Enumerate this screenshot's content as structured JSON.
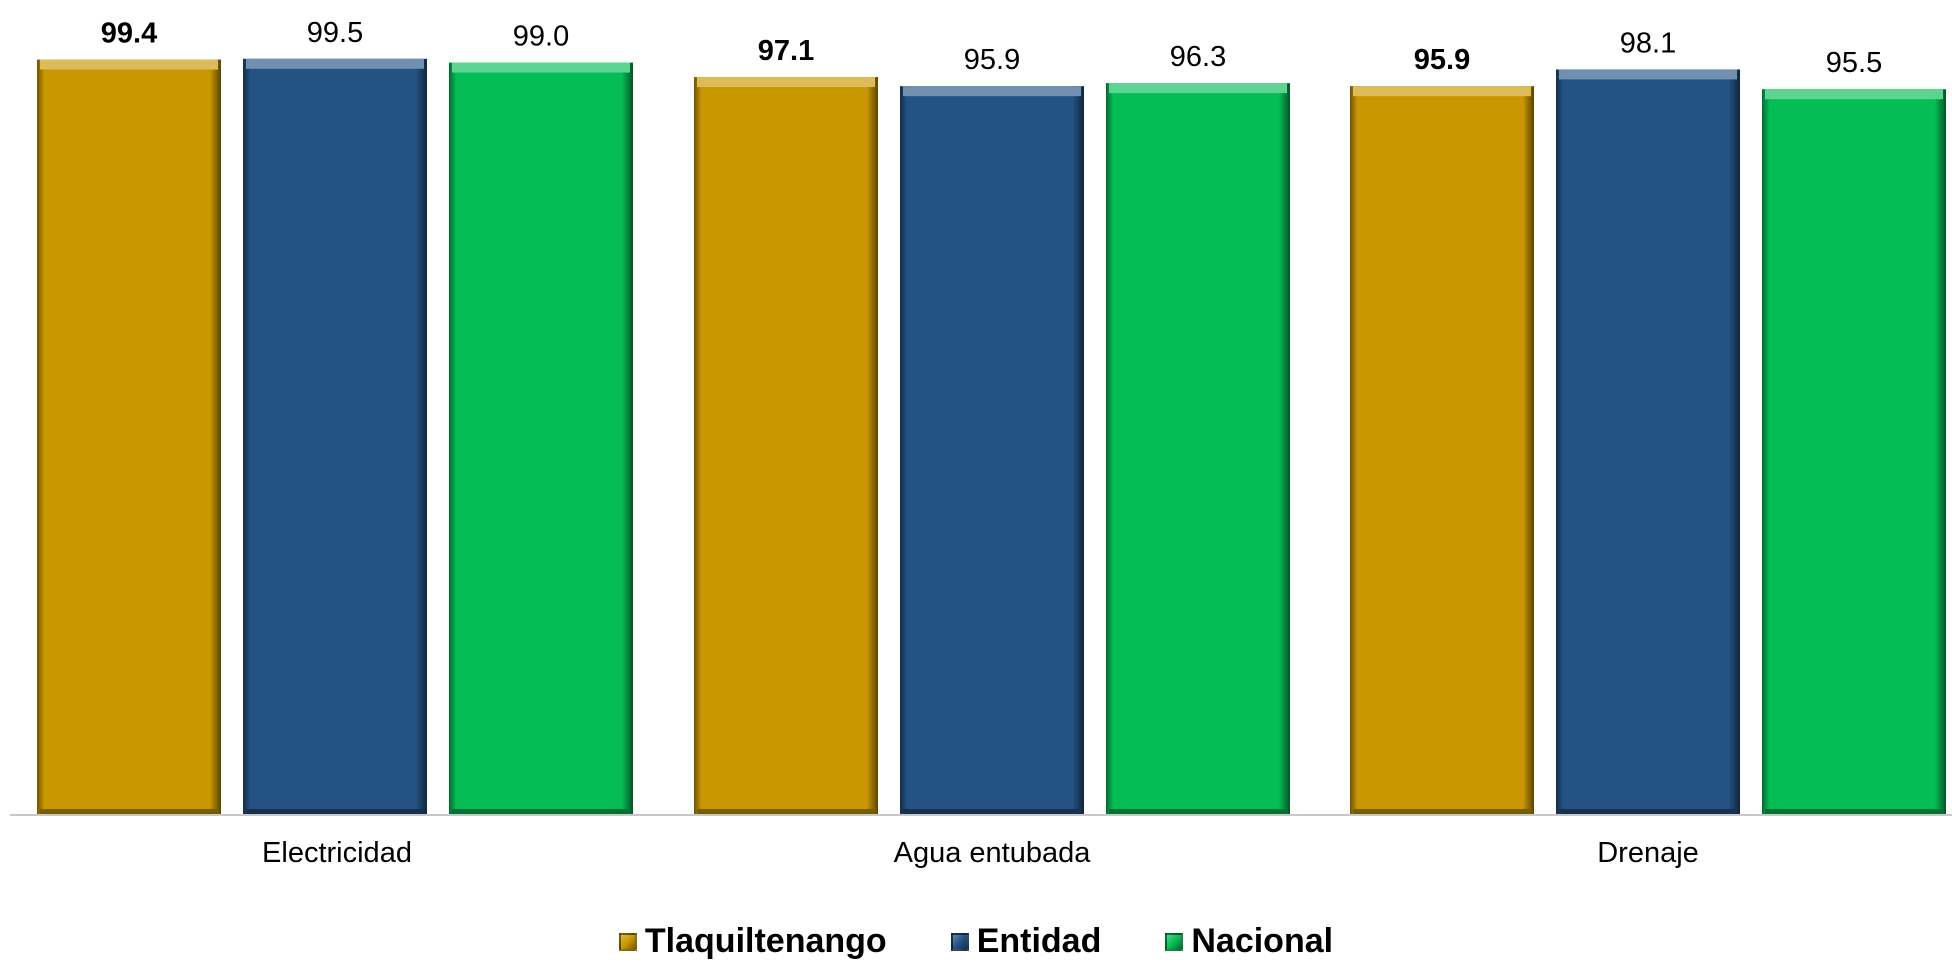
{
  "chart_data": {
    "type": "bar",
    "categories": [
      "Electricidad",
      "Agua entubada",
      "Drenaje"
    ],
    "series": [
      {
        "name": "Tlaquiltenango",
        "values": [
          99.4,
          97.1,
          95.9
        ],
        "color": "#C99700",
        "label_bold": true
      },
      {
        "name": "Entidad",
        "values": [
          99.5,
          95.9,
          98.1
        ],
        "color": "#245283",
        "label_bold": false
      },
      {
        "name": "Nacional",
        "values": [
          99.0,
          96.3,
          95.5
        ],
        "color": "#05BD55",
        "label_bold": false
      }
    ],
    "value_labels": [
      [
        "99.4",
        "97.1",
        "95.9"
      ],
      [
        "99.5",
        "95.9",
        "98.1"
      ],
      [
        "99.0",
        "96.3",
        "95.5"
      ]
    ],
    "ylim": [
      0,
      100
    ],
    "grid": false,
    "legend_position": "bottom-center"
  }
}
